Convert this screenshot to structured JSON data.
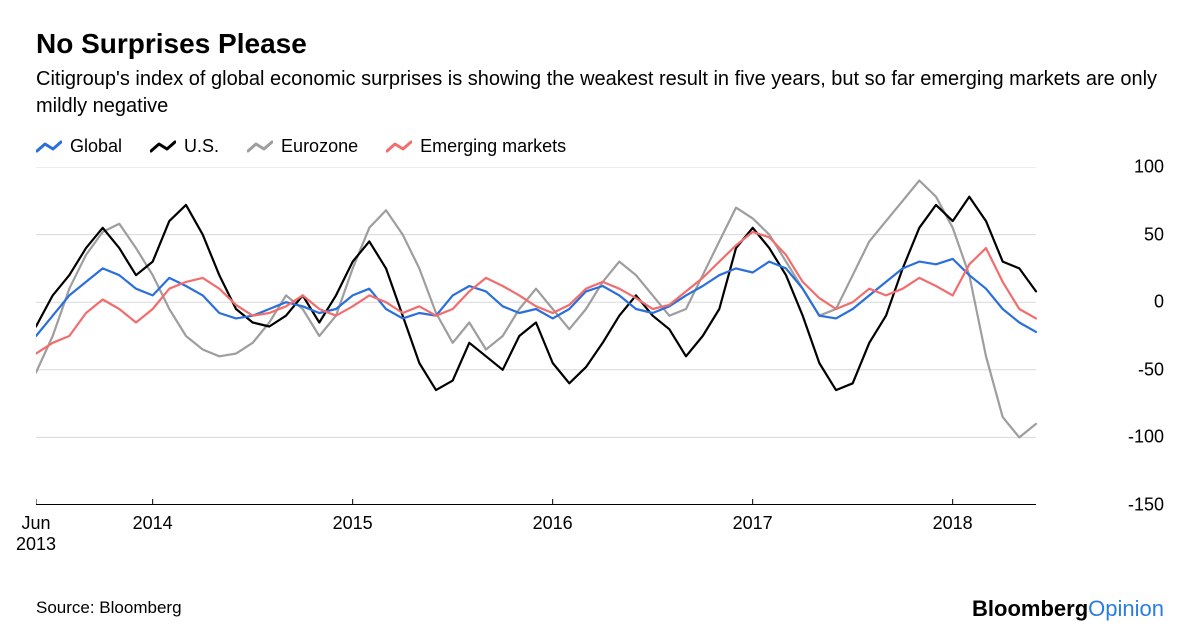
{
  "title": "No Surprises Please",
  "subtitle": "Citigroup's index of global economic surprises is showing the weakest result in five years, but so far emerging markets are only mildly negative",
  "source": "Source: Bloomberg",
  "brand": {
    "part1": "Bloomberg",
    "part2": "Opinion"
  },
  "chart": {
    "type": "line",
    "background_color": "#ffffff",
    "grid_color": "#d8d8d8",
    "axis_color": "#000000",
    "label_fontsize": 18,
    "title_fontsize": 28,
    "subtitle_fontsize": 20,
    "line_width": 2.2,
    "ylim": [
      -150,
      100
    ],
    "ytick_step": 50,
    "yticks": [
      100,
      50,
      0,
      -50,
      -100,
      -150
    ],
    "xlim": [
      0,
      60
    ],
    "xticks": [
      {
        "pos": 0,
        "label": "Jun\n2013"
      },
      {
        "pos": 7,
        "label": "2014"
      },
      {
        "pos": 19,
        "label": "2015"
      },
      {
        "pos": 31,
        "label": "2016"
      },
      {
        "pos": 43,
        "label": "2017"
      },
      {
        "pos": 55,
        "label": "2018"
      }
    ],
    "legend": [
      {
        "name": "Global",
        "color": "#2a6fdb"
      },
      {
        "name": "U.S.",
        "color": "#000000"
      },
      {
        "name": "Eurozone",
        "color": "#9e9e9e"
      },
      {
        "name": "Emerging markets",
        "color": "#f26d6d"
      }
    ],
    "series": {
      "global": {
        "color": "#2a6fdb",
        "data": [
          -25,
          -10,
          5,
          15,
          25,
          20,
          10,
          5,
          18,
          12,
          5,
          -8,
          -12,
          -10,
          -5,
          0,
          -3,
          -8,
          -5,
          5,
          10,
          -5,
          -12,
          -8,
          -10,
          5,
          12,
          8,
          -3,
          -8,
          -5,
          -12,
          -5,
          8,
          12,
          5,
          -5,
          -8,
          -3,
          5,
          12,
          20,
          25,
          22,
          30,
          25,
          10,
          -10,
          -12,
          -5,
          5,
          15,
          25,
          30,
          28,
          32,
          20,
          10,
          -5,
          -15,
          -22
        ]
      },
      "us": {
        "color": "#000000",
        "data": [
          -18,
          5,
          20,
          40,
          55,
          40,
          20,
          30,
          60,
          72,
          50,
          20,
          -5,
          -15,
          -18,
          -10,
          5,
          -15,
          5,
          30,
          45,
          25,
          -10,
          -45,
          -65,
          -58,
          -30,
          -40,
          -50,
          -25,
          -15,
          -45,
          -60,
          -48,
          -30,
          -10,
          5,
          -10,
          -20,
          -40,
          -25,
          -5,
          40,
          55,
          40,
          20,
          -10,
          -45,
          -65,
          -60,
          -30,
          -10,
          25,
          55,
          72,
          60,
          78,
          60,
          30,
          25,
          8
        ]
      },
      "eurozone": {
        "color": "#9e9e9e",
        "data": [
          -52,
          -25,
          10,
          35,
          52,
          58,
          40,
          20,
          -5,
          -25,
          -35,
          -40,
          -38,
          -30,
          -15,
          5,
          -5,
          -25,
          -10,
          25,
          55,
          68,
          50,
          25,
          -8,
          -30,
          -15,
          -35,
          -25,
          -5,
          10,
          -5,
          -20,
          -5,
          15,
          30,
          20,
          5,
          -10,
          -5,
          20,
          45,
          70,
          62,
          50,
          30,
          10,
          -10,
          -5,
          20,
          45,
          60,
          75,
          90,
          78,
          55,
          20,
          -40,
          -85,
          -100,
          -90
        ]
      },
      "emerging": {
        "color": "#f26d6d",
        "data": [
          -38,
          -30,
          -25,
          -8,
          2,
          -5,
          -15,
          -5,
          10,
          15,
          18,
          10,
          -2,
          -10,
          -8,
          -3,
          5,
          -5,
          -10,
          -3,
          5,
          0,
          -8,
          -3,
          -10,
          -5,
          8,
          18,
          12,
          5,
          -3,
          -8,
          -2,
          10,
          15,
          10,
          3,
          -5,
          -2,
          8,
          18,
          30,
          42,
          52,
          48,
          35,
          15,
          3,
          -5,
          0,
          10,
          5,
          10,
          18,
          12,
          5,
          28,
          40,
          15,
          -5,
          -12
        ]
      }
    }
  }
}
